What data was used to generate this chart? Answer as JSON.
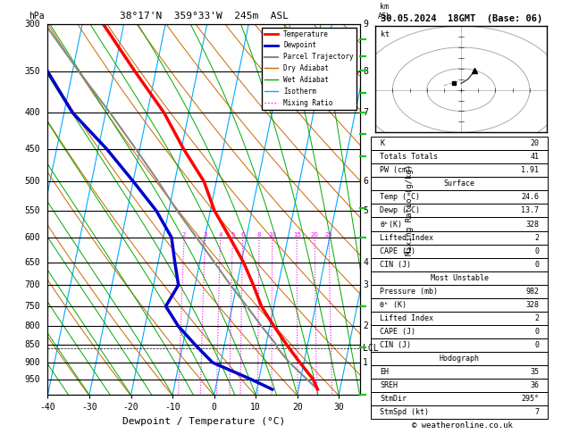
{
  "title_left": "38°17'N  359°33'W  245m  ASL",
  "title_right": "30.05.2024  18GMT  (Base: 06)",
  "xlabel": "Dewpoint / Temperature (°C)",
  "pressure_levels": [
    300,
    350,
    400,
    450,
    500,
    550,
    600,
    650,
    700,
    750,
    800,
    850,
    900,
    950
  ],
  "xmin": -40,
  "xmax": 35,
  "pmin": 300,
  "pmax": 1000,
  "temp_color": "#ff0000",
  "dewp_color": "#0000cc",
  "parcel_color": "#888888",
  "dry_adiabat_color": "#cc6600",
  "wet_adiabat_color": "#00aa00",
  "isotherm_color": "#00aaff",
  "mixing_ratio_color": "#ff00ff",
  "background": "#ffffff",
  "legend_items": [
    {
      "label": "Temperature",
      "color": "#ff0000",
      "lw": 2,
      "ls": "-"
    },
    {
      "label": "Dewpoint",
      "color": "#0000cc",
      "lw": 2,
      "ls": "-"
    },
    {
      "label": "Parcel Trajectory",
      "color": "#888888",
      "lw": 1.5,
      "ls": "-"
    },
    {
      "label": "Dry Adiabat",
      "color": "#cc6600",
      "lw": 1,
      "ls": "-"
    },
    {
      "label": "Wet Adiabat",
      "color": "#00aa00",
      "lw": 1,
      "ls": "-"
    },
    {
      "label": "Isotherm",
      "color": "#00aaff",
      "lw": 1,
      "ls": "-"
    },
    {
      "label": "Mixing Ratio",
      "color": "#ff00ff",
      "lw": 1,
      "ls": ":"
    }
  ],
  "temp_profile": {
    "pressure": [
      982,
      950,
      900,
      850,
      800,
      750,
      700,
      650,
      600,
      550,
      500,
      450,
      400,
      350,
      300
    ],
    "temp": [
      24.6,
      23.0,
      19.0,
      15.0,
      11.0,
      7.0,
      4.0,
      0.5,
      -4.0,
      -9.0,
      -13.0,
      -19.5,
      -26.0,
      -35.0,
      -45.0
    ]
  },
  "dewp_profile": {
    "pressure": [
      982,
      950,
      900,
      850,
      800,
      750,
      700,
      650,
      600,
      550,
      500,
      450,
      400,
      350,
      300
    ],
    "temp": [
      13.7,
      8.0,
      -2.0,
      -7.0,
      -12.0,
      -16.0,
      -14.0,
      -16.0,
      -18.0,
      -23.0,
      -30.0,
      -38.0,
      -48.0,
      -56.0,
      -64.0
    ]
  },
  "parcel_profile": {
    "pressure": [
      982,
      950,
      900,
      860,
      850,
      800,
      750,
      700,
      650,
      600,
      550,
      500,
      450,
      400,
      350,
      300
    ],
    "temp": [
      24.6,
      21.5,
      16.5,
      13.0,
      12.5,
      8.0,
      3.5,
      -1.5,
      -6.5,
      -12.0,
      -18.0,
      -24.0,
      -31.0,
      -39.0,
      -48.5,
      -59.0
    ]
  },
  "lcl_pressure": 860,
  "mixing_ratios": [
    2,
    3,
    4,
    5,
    6,
    8,
    10,
    15,
    20,
    25
  ],
  "km_axis_labels": [
    {
      "km": 9,
      "pressure": 300
    },
    {
      "km": 8,
      "pressure": 350
    },
    {
      "km": 7,
      "pressure": 400
    },
    {
      "km": 6,
      "pressure": 500
    },
    {
      "km": 5,
      "pressure": 550
    },
    {
      "km": 4,
      "pressure": 650
    },
    {
      "km": 3,
      "pressure": 700
    },
    {
      "km": 2,
      "pressure": 800
    },
    {
      "km": 1,
      "pressure": 900
    }
  ],
  "info_table": {
    "K": "20",
    "Totals Totals": "41",
    "PW (cm)": "1.91",
    "Surface_Temp": "24.6",
    "Surface_Dewp": "13.7",
    "Surface_theta_e": "328",
    "Surface_LI": "2",
    "Surface_CAPE": "0",
    "Surface_CIN": "0",
    "MU_Pressure": "982",
    "MU_theta_e": "328",
    "MU_LI": "2",
    "MU_CAPE": "0",
    "MU_CIN": "0",
    "EH": "35",
    "SREH": "36",
    "StmDir": "295°",
    "StmSpd": "7"
  }
}
